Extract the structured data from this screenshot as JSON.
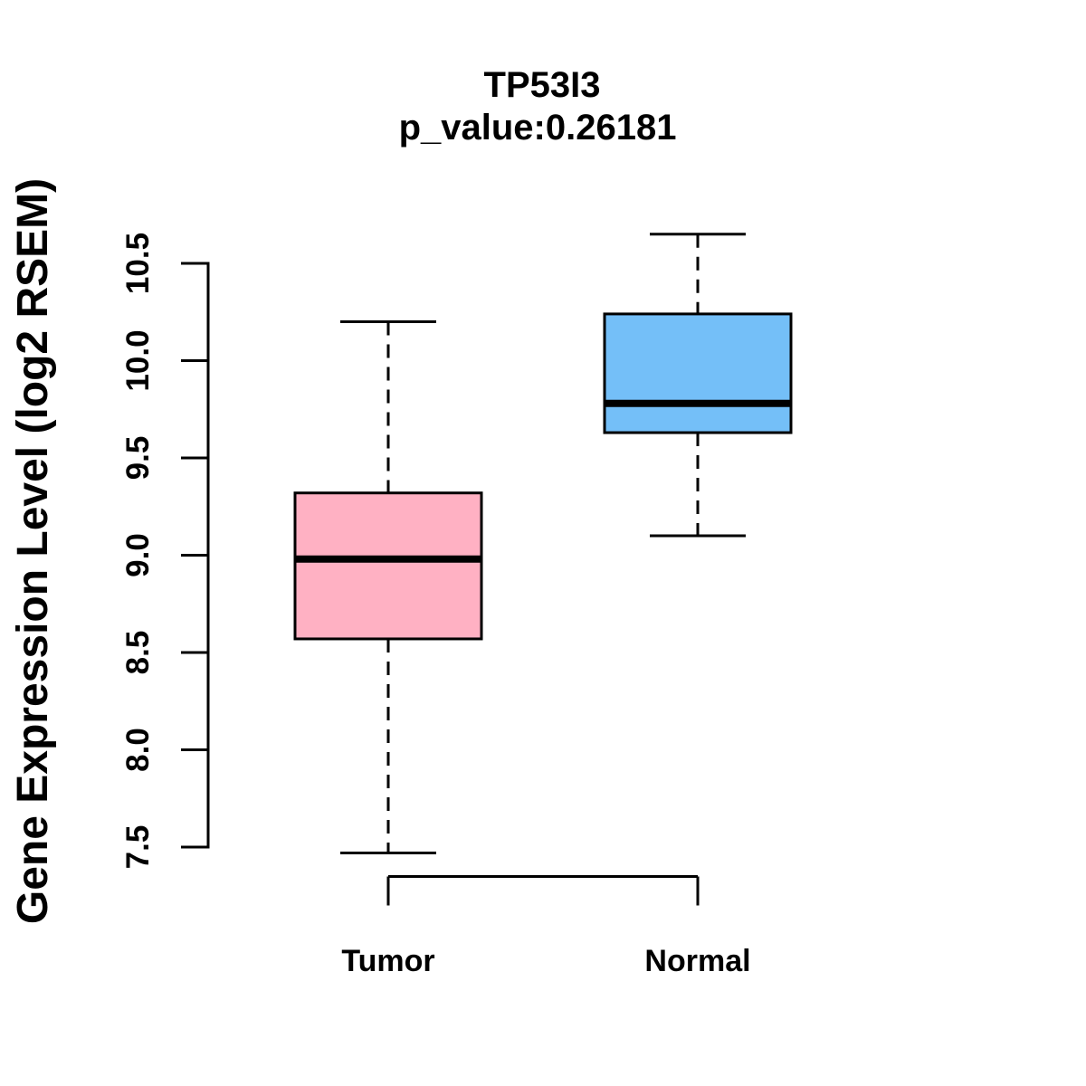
{
  "title": {
    "line1": "TP53I3",
    "line2": "p_value:0.26181"
  },
  "y_axis": {
    "label": "Gene Expression Level (log2 RSEM)"
  },
  "colors": {
    "tumor_fill": "#FFB1C3",
    "normal_fill": "#74BFF8",
    "line": "#000000",
    "background": "#FFFFFF"
  },
  "chart_data": {
    "type": "boxplot",
    "title": "TP53I3",
    "subtitle": "p_value:0.26181",
    "gene": "TP53I3",
    "p_value": 0.26181,
    "ylabel": "Gene Expression Level (log2 RSEM)",
    "categories": [
      "Tumor",
      "Normal"
    ],
    "yticks": [
      7.5,
      8.0,
      8.5,
      9.0,
      9.5,
      10.0,
      10.5
    ],
    "ytick_labels": [
      "7.5",
      "8.0",
      "8.5",
      "9.0",
      "9.5",
      "10.0",
      "10.5"
    ],
    "ylim": [
      7.4,
      10.72
    ],
    "grid": false,
    "legend": "none",
    "series": [
      {
        "name": "Tumor",
        "fill": "#FFB1C3",
        "whisker_low": 7.47,
        "q1": 8.57,
        "median": 8.98,
        "q3": 9.32,
        "whisker_high": 10.2
      },
      {
        "name": "Normal",
        "fill": "#74BFF8",
        "whisker_low": 9.1,
        "q1": 9.63,
        "median": 9.78,
        "q3": 10.24,
        "whisker_high": 10.65
      }
    ]
  }
}
